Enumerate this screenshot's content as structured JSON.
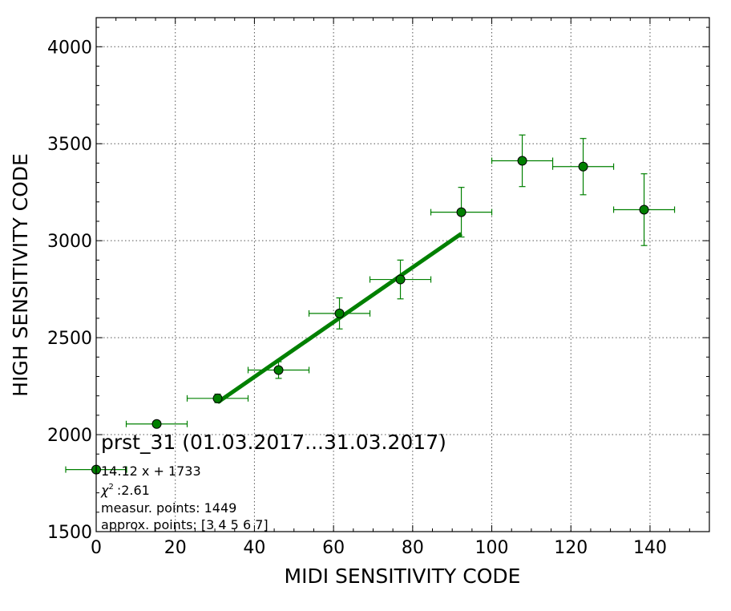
{
  "chart_data": {
    "type": "scatter",
    "xlabel": "MIDI SENSITIVITY CODE",
    "ylabel": "HIGH SENSITIVITY CODE",
    "xlim": [
      0,
      155
    ],
    "ylim": [
      1500,
      4150
    ],
    "x_ticks": [
      0,
      20,
      40,
      60,
      80,
      100,
      120,
      140
    ],
    "y_ticks": [
      1500,
      2000,
      2500,
      3000,
      3500,
      4000
    ],
    "x_tick_labels": [
      "0",
      "20",
      "40",
      "60",
      "80",
      "100",
      "120",
      "140"
    ],
    "y_tick_labels": [
      "1500",
      "2000",
      "2500",
      "3000",
      "3500",
      "4000"
    ],
    "grid": true,
    "marker_color": "#008000",
    "line_color": "#008000",
    "points": [
      {
        "x": 0,
        "y": 1820,
        "xerr": 7.7,
        "yerr": 0
      },
      {
        "x": 15.3,
        "y": 2055,
        "xerr": 7.7,
        "yerr": 0
      },
      {
        "x": 30.7,
        "y": 2187,
        "xerr": 7.7,
        "yerr": 22
      },
      {
        "x": 46.1,
        "y": 2333,
        "xerr": 7.7,
        "yerr": 43
      },
      {
        "x": 61.5,
        "y": 2625,
        "xerr": 7.7,
        "yerr": 80
      },
      {
        "x": 76.9,
        "y": 2800,
        "xerr": 7.7,
        "yerr": 100
      },
      {
        "x": 92.3,
        "y": 3147,
        "xerr": 7.7,
        "yerr": 128
      },
      {
        "x": 107.7,
        "y": 3412,
        "xerr": 7.7,
        "yerr": 133
      },
      {
        "x": 123.1,
        "y": 3382,
        "xerr": 7.7,
        "yerr": 145
      },
      {
        "x": 138.5,
        "y": 3160,
        "xerr": 7.7,
        "yerr": 185
      }
    ],
    "fit": {
      "slope": 14.12,
      "intercept": 1733,
      "x_range": [
        30.7,
        92.3
      ]
    },
    "annotations": {
      "title": "prst_31 (01.03.2017...31.03.2017)",
      "equation": "14.12 x + 1733",
      "chi2_symbol": "χ",
      "chi2_exp": "2",
      "chi2_value": ":2.61",
      "measur_points": "measur. points: 1449",
      "approx_points": "approx. points: [3 4 5 6 7]"
    }
  }
}
